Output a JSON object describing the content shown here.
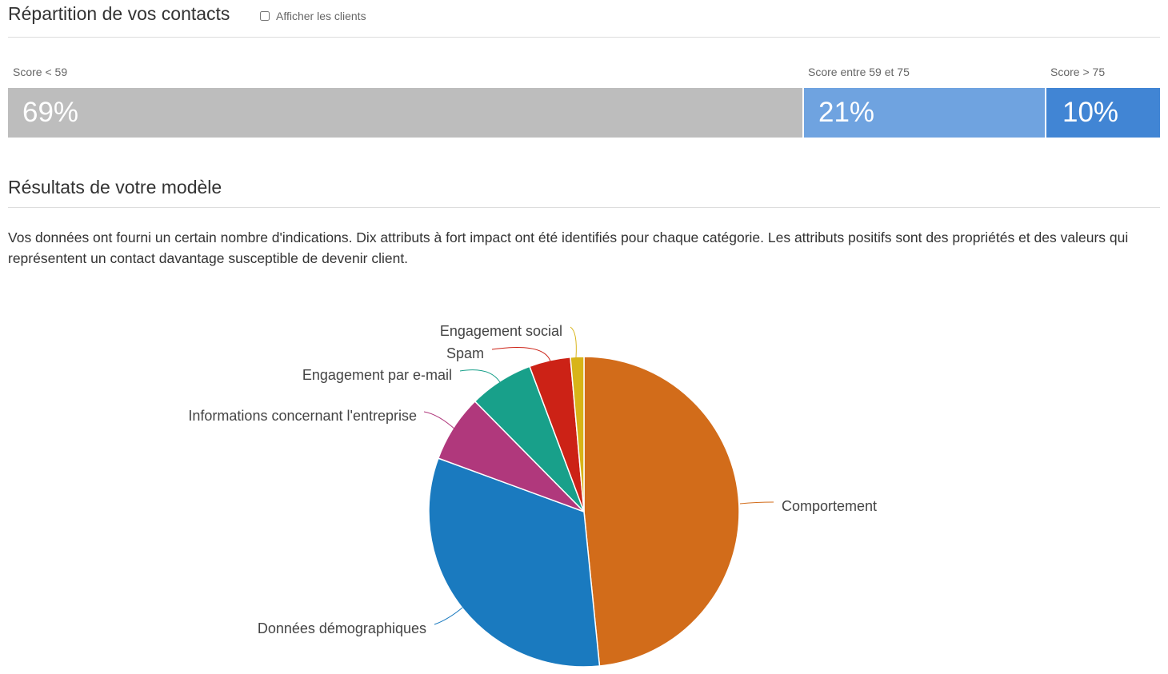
{
  "header": {
    "title": "Répartition de vos contacts",
    "show_clients_label": "Afficher les clients",
    "show_clients_checked": false
  },
  "score_bar": {
    "segments": [
      {
        "label": "Score < 59",
        "value_text": "69%",
        "value": 69,
        "color": "#bdbdbd"
      },
      {
        "label": "Score entre 59 et 75",
        "value_text": "21%",
        "value": 21,
        "color": "#6fa3e0"
      },
      {
        "label": "Score > 75",
        "value_text": "10%",
        "value": 10,
        "color": "#4185d4"
      }
    ]
  },
  "results": {
    "title": "Résultats de votre modèle",
    "description": "Vos données ont fourni un certain nombre d'indications. Dix attributs à fort impact ont été identifiés pour chaque catégorie. Les attributs positifs sont des propriétés et des valeurs qui représentent un contact davantage susceptible de devenir client."
  },
  "chart_data": {
    "type": "pie",
    "start": "top",
    "direction": "clockwise",
    "slices": [
      {
        "label": "Comportement",
        "value": 48.4,
        "color": "#d26c1a"
      },
      {
        "label": "Données démographiques",
        "value": 32.2,
        "color": "#1a7abf"
      },
      {
        "label": "Informations concernant l'entreprise",
        "value": 7.0,
        "color": "#b0387c"
      },
      {
        "label": "Engagement par e-mail",
        "value": 6.7,
        "color": "#18a08a"
      },
      {
        "label": "Spam",
        "value": 4.3,
        "color": "#cc2216"
      },
      {
        "label": "Engagement social",
        "value": 1.4,
        "color": "#d8b418"
      }
    ]
  }
}
